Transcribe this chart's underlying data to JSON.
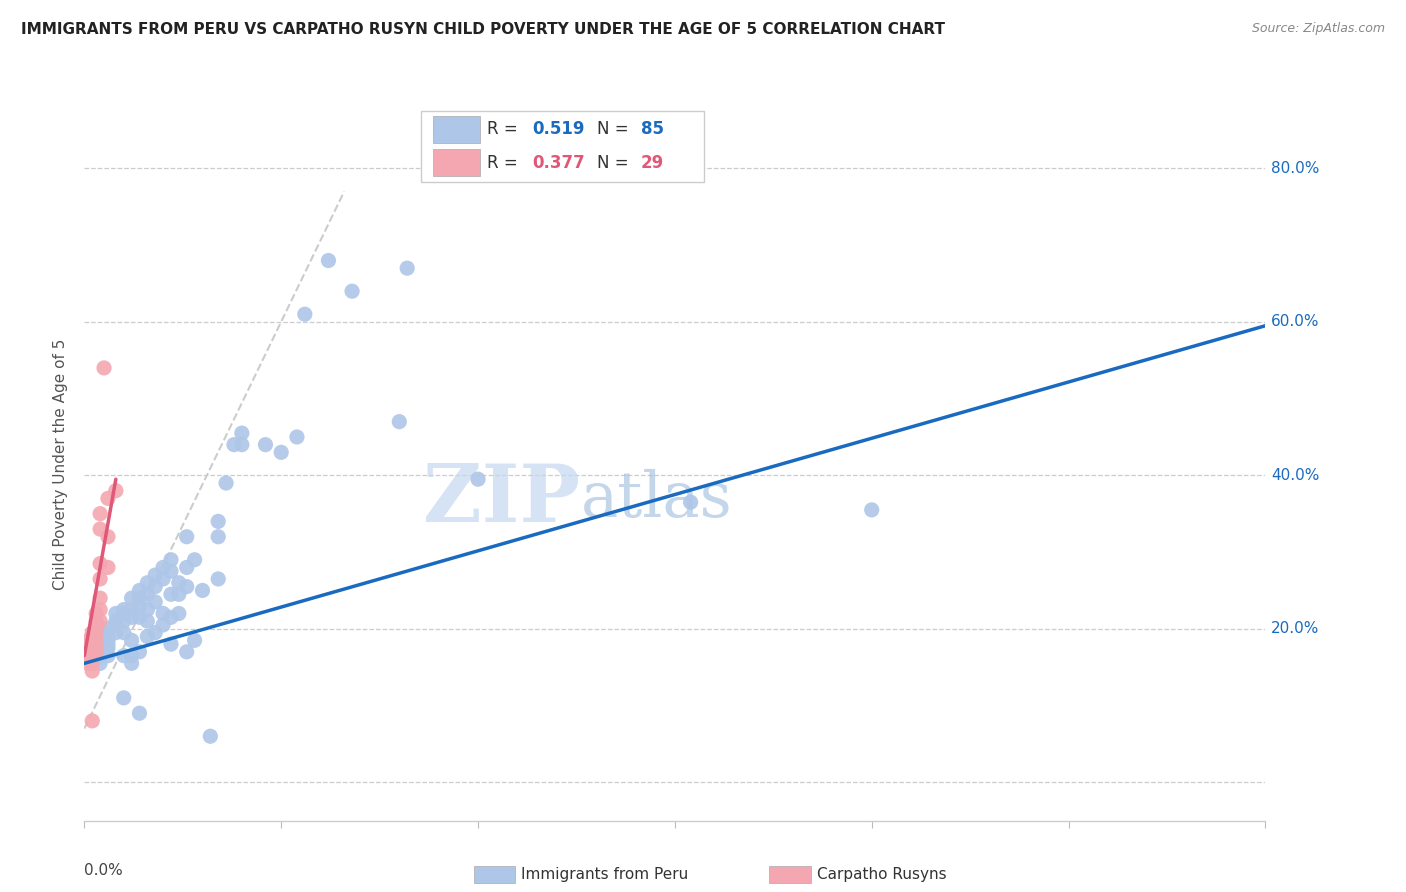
{
  "title": "IMMIGRANTS FROM PERU VS CARPATHO RUSYN CHILD POVERTY UNDER THE AGE OF 5 CORRELATION CHART",
  "source": "Source: ZipAtlas.com",
  "ylabel": "Child Poverty Under the Age of 5",
  "xlim": [
    0.0,
    0.15
  ],
  "ylim": [
    -0.05,
    0.88
  ],
  "blue_color": "#aec6e8",
  "pink_color": "#f4a7b0",
  "blue_line_color": "#1a6bbf",
  "pink_line_color": "#e05878",
  "dashed_line_color": "#cccccc",
  "watermark_zip": "ZIP",
  "watermark_atlas": "atlas",
  "background_color": "#ffffff",
  "grid_color": "#cccccc",
  "blue_points": [
    [
      0.001,
      0.185
    ],
    [
      0.001,
      0.175
    ],
    [
      0.001,
      0.155
    ],
    [
      0.001,
      0.17
    ],
    [
      0.001,
      0.19
    ],
    [
      0.001,
      0.165
    ],
    [
      0.002,
      0.18
    ],
    [
      0.002,
      0.2
    ],
    [
      0.002,
      0.165
    ],
    [
      0.002,
      0.155
    ],
    [
      0.002,
      0.17
    ],
    [
      0.003,
      0.2
    ],
    [
      0.003,
      0.19
    ],
    [
      0.003,
      0.175
    ],
    [
      0.003,
      0.185
    ],
    [
      0.003,
      0.18
    ],
    [
      0.003,
      0.165
    ],
    [
      0.004,
      0.21
    ],
    [
      0.004,
      0.22
    ],
    [
      0.004,
      0.205
    ],
    [
      0.004,
      0.195
    ],
    [
      0.005,
      0.21
    ],
    [
      0.005,
      0.225
    ],
    [
      0.005,
      0.22
    ],
    [
      0.005,
      0.195
    ],
    [
      0.005,
      0.165
    ],
    [
      0.005,
      0.11
    ],
    [
      0.006,
      0.24
    ],
    [
      0.006,
      0.225
    ],
    [
      0.006,
      0.215
    ],
    [
      0.006,
      0.185
    ],
    [
      0.006,
      0.165
    ],
    [
      0.006,
      0.155
    ],
    [
      0.007,
      0.25
    ],
    [
      0.007,
      0.24
    ],
    [
      0.007,
      0.23
    ],
    [
      0.007,
      0.215
    ],
    [
      0.007,
      0.17
    ],
    [
      0.007,
      0.09
    ],
    [
      0.008,
      0.26
    ],
    [
      0.008,
      0.245
    ],
    [
      0.008,
      0.225
    ],
    [
      0.008,
      0.21
    ],
    [
      0.008,
      0.19
    ],
    [
      0.009,
      0.27
    ],
    [
      0.009,
      0.255
    ],
    [
      0.009,
      0.235
    ],
    [
      0.009,
      0.195
    ],
    [
      0.01,
      0.28
    ],
    [
      0.01,
      0.265
    ],
    [
      0.01,
      0.22
    ],
    [
      0.01,
      0.205
    ],
    [
      0.011,
      0.29
    ],
    [
      0.011,
      0.275
    ],
    [
      0.011,
      0.245
    ],
    [
      0.011,
      0.215
    ],
    [
      0.011,
      0.18
    ],
    [
      0.012,
      0.26
    ],
    [
      0.012,
      0.245
    ],
    [
      0.012,
      0.22
    ],
    [
      0.013,
      0.32
    ],
    [
      0.013,
      0.28
    ],
    [
      0.013,
      0.255
    ],
    [
      0.013,
      0.17
    ],
    [
      0.014,
      0.29
    ],
    [
      0.014,
      0.185
    ],
    [
      0.015,
      0.25
    ],
    [
      0.016,
      0.06
    ],
    [
      0.017,
      0.34
    ],
    [
      0.017,
      0.32
    ],
    [
      0.017,
      0.265
    ],
    [
      0.018,
      0.39
    ],
    [
      0.019,
      0.44
    ],
    [
      0.02,
      0.455
    ],
    [
      0.02,
      0.44
    ],
    [
      0.023,
      0.44
    ],
    [
      0.025,
      0.43
    ],
    [
      0.027,
      0.45
    ],
    [
      0.028,
      0.61
    ],
    [
      0.031,
      0.68
    ],
    [
      0.034,
      0.64
    ],
    [
      0.04,
      0.47
    ],
    [
      0.041,
      0.67
    ],
    [
      0.05,
      0.395
    ],
    [
      0.077,
      0.365
    ],
    [
      0.1,
      0.355
    ]
  ],
  "pink_points": [
    [
      0.0005,
      0.185
    ],
    [
      0.0005,
      0.17
    ],
    [
      0.0005,
      0.16
    ],
    [
      0.0005,
      0.155
    ],
    [
      0.001,
      0.195
    ],
    [
      0.001,
      0.185
    ],
    [
      0.001,
      0.175
    ],
    [
      0.001,
      0.165
    ],
    [
      0.001,
      0.155
    ],
    [
      0.001,
      0.145
    ],
    [
      0.001,
      0.08
    ],
    [
      0.0015,
      0.22
    ],
    [
      0.0015,
      0.21
    ],
    [
      0.0015,
      0.2
    ],
    [
      0.0015,
      0.19
    ],
    [
      0.0015,
      0.18
    ],
    [
      0.0015,
      0.17
    ],
    [
      0.002,
      0.35
    ],
    [
      0.002,
      0.33
    ],
    [
      0.002,
      0.285
    ],
    [
      0.002,
      0.265
    ],
    [
      0.002,
      0.24
    ],
    [
      0.002,
      0.225
    ],
    [
      0.002,
      0.21
    ],
    [
      0.0025,
      0.54
    ],
    [
      0.003,
      0.37
    ],
    [
      0.003,
      0.32
    ],
    [
      0.003,
      0.28
    ],
    [
      0.004,
      0.38
    ]
  ],
  "blue_trendline": [
    [
      0.0,
      0.155
    ],
    [
      0.15,
      0.595
    ]
  ],
  "pink_trendline": [
    [
      0.0,
      0.165
    ],
    [
      0.004,
      0.395
    ]
  ],
  "dashed_trendline": [
    [
      0.0,
      0.07
    ],
    [
      0.033,
      0.77
    ]
  ]
}
